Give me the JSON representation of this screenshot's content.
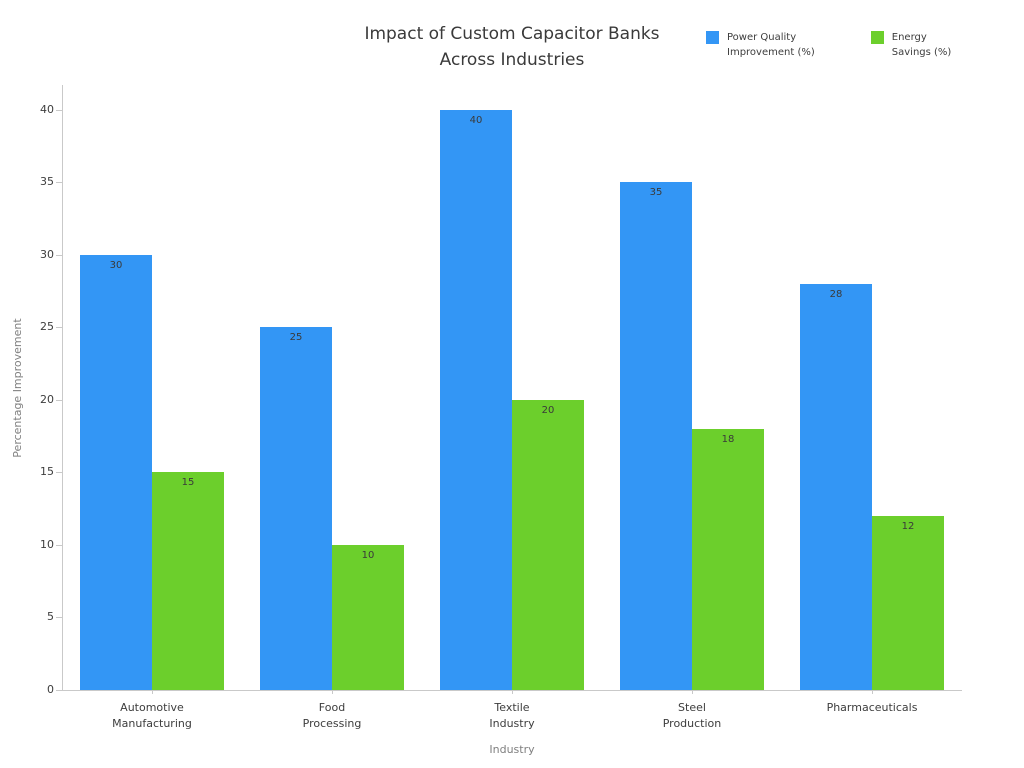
{
  "chart_data": {
    "type": "bar",
    "title": "Impact of Custom Capacitor Banks Across Industries",
    "title_lines": [
      "Impact of Custom Capacitor Banks",
      "Across Industries"
    ],
    "categories": [
      "Automotive Manufacturing",
      "Food Processing",
      "Textile Industry",
      "Steel Production",
      "Pharmaceuticals"
    ],
    "category_tick_lines": [
      [
        "Automotive",
        "Manufacturing"
      ],
      [
        "Food",
        "Processing"
      ],
      [
        "Textile",
        "Industry"
      ],
      [
        "Steel",
        "Production"
      ],
      [
        "Pharmaceuticals"
      ]
    ],
    "series": [
      {
        "name": "Power Quality Improvement (%)",
        "legend_lines": [
          "Power Quality",
          "Improvement (%)"
        ],
        "color": "#3396f5",
        "values": [
          30,
          25,
          40,
          35,
          28
        ]
      },
      {
        "name": "Energy Savings (%)",
        "legend_lines": [
          "Energy",
          "Savings (%)"
        ],
        "color": "#6ccf2c",
        "values": [
          15,
          10,
          20,
          18,
          12
        ]
      }
    ],
    "xlabel": "Industry",
    "ylabel": "Percentage Improvement",
    "ylim": [
      0,
      41.7
    ],
    "yticks": [
      0,
      5,
      10,
      15,
      20,
      25,
      30,
      35,
      40
    ],
    "grid": false,
    "legend_position": "top-right",
    "bar_value_labels": true,
    "background_color": "#ffffff",
    "axis_color": "#c9c9c9",
    "tick_text_color": "#3d3d3d",
    "axis_title_color": "#808080"
  }
}
